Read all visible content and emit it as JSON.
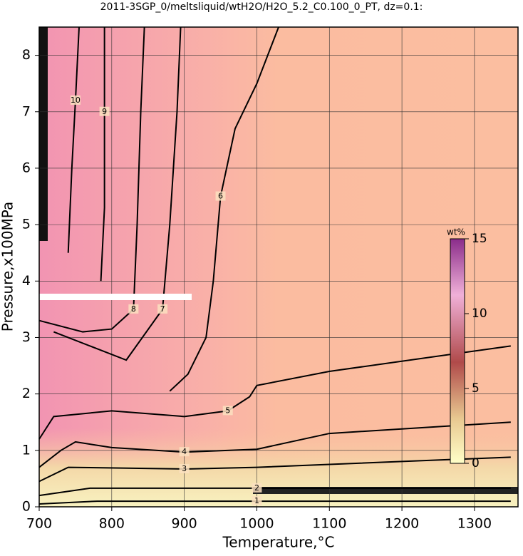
{
  "chart_data": {
    "type": "contour",
    "title": "2011-3SGP_0/meltsliquid/wtH2O/H2O_5.2_C0.100_0_PT, dz=0.1:",
    "x_label": "Temperature,°C",
    "y_label": "Pressure,x100MPa",
    "xlim": [
      700,
      1360
    ],
    "ylim": [
      0,
      8.5
    ],
    "xticks": [
      700,
      800,
      900,
      1000,
      1100,
      1200,
      1300
    ],
    "yticks": [
      0,
      1,
      2,
      3,
      4,
      5,
      6,
      7,
      8
    ],
    "grid": true,
    "contours": [
      {
        "level": 1,
        "x": [
          700,
          780,
          1000,
          1350
        ],
        "y": [
          0.05,
          0.1,
          0.1,
          0.1
        ]
      },
      {
        "level": 2,
        "x": [
          700,
          770,
          1000,
          1350
        ],
        "y": [
          0.2,
          0.33,
          0.33,
          0.33
        ]
      },
      {
        "level": 3,
        "x": [
          700,
          740,
          900,
          1000,
          1350
        ],
        "y": [
          0.45,
          0.7,
          0.67,
          0.7,
          0.88
        ]
      },
      {
        "level": 4,
        "x": [
          700,
          730,
          750,
          800,
          900,
          1000,
          1100,
          1350
        ],
        "y": [
          0.7,
          1.0,
          1.15,
          1.05,
          0.97,
          1.02,
          1.3,
          1.5
        ]
      },
      {
        "level": 5,
        "x": [
          700,
          720,
          800,
          900,
          960,
          990,
          1000,
          1100,
          1350
        ],
        "y": [
          1.2,
          1.6,
          1.7,
          1.6,
          1.7,
          1.95,
          2.15,
          2.4,
          2.85
        ]
      },
      {
        "level": 6,
        "x": [
          880,
          905,
          930,
          940,
          950,
          970,
          1000,
          1030
        ],
        "y": [
          2.05,
          2.35,
          3.0,
          4.0,
          5.5,
          6.7,
          7.5,
          8.5
        ]
      },
      {
        "level": 7,
        "x": [
          720,
          780,
          820,
          870,
          880,
          890,
          895
        ],
        "y": [
          3.1,
          2.8,
          2.6,
          3.5,
          5.0,
          7.0,
          8.5
        ]
      },
      {
        "level": 8,
        "x": [
          700,
          760,
          800,
          830,
          835,
          840,
          845
        ],
        "y": [
          3.3,
          3.1,
          3.15,
          3.5,
          5.0,
          7.0,
          8.5
        ]
      },
      {
        "level": 9,
        "x": [
          785,
          790,
          790,
          790
        ],
        "y": [
          4.0,
          5.3,
          7.0,
          8.5
        ]
      },
      {
        "level": 10,
        "x": [
          740,
          745,
          750,
          755
        ],
        "y": [
          4.5,
          6.0,
          7.2,
          8.5
        ]
      }
    ],
    "colorbar": {
      "label": "wt%",
      "lim": [
        0,
        15
      ],
      "ticks": [
        0,
        5,
        10,
        15
      ]
    }
  }
}
